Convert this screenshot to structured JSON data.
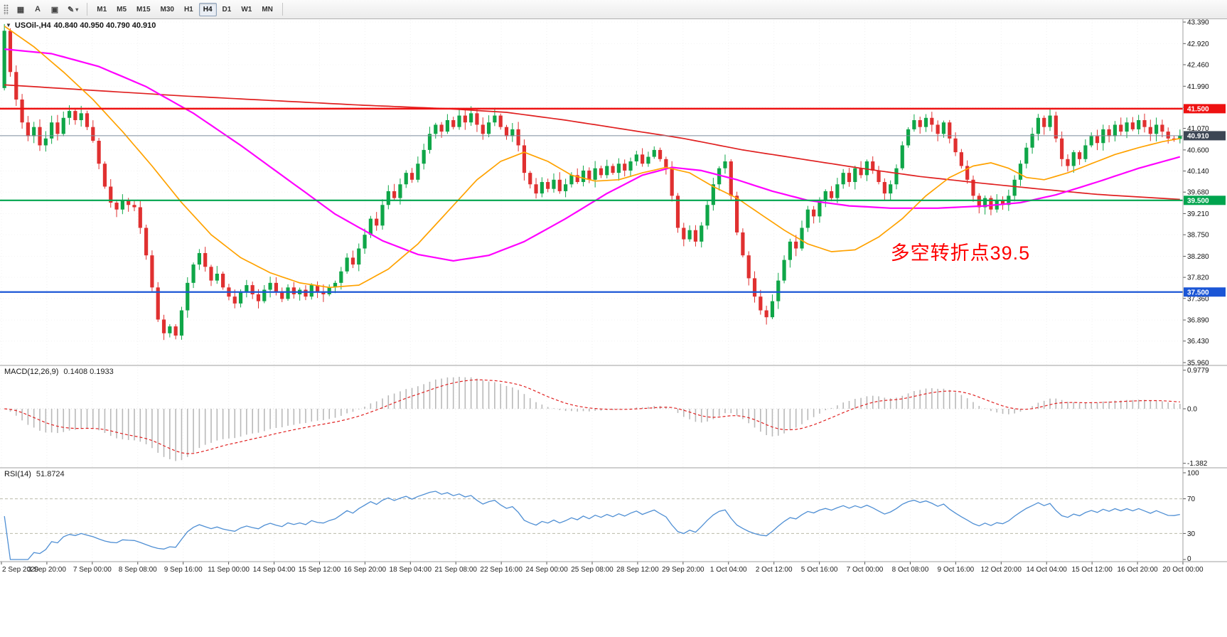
{
  "toolbar": {
    "tools": [
      {
        "name": "charts-grid",
        "glyph": "▦"
      },
      {
        "name": "annotate-text",
        "glyph": "A"
      },
      {
        "name": "select-box",
        "glyph": "▣"
      },
      {
        "name": "draw-pencil",
        "glyph": "✎",
        "caret": "▾"
      }
    ],
    "timeframes": [
      "M1",
      "M5",
      "M15",
      "M30",
      "H1",
      "H4",
      "D1",
      "W1",
      "MN"
    ],
    "active_timeframe": "H4"
  },
  "price_panel": {
    "collapse_arrow": "▼",
    "title": "USOil-,H4",
    "ohlc_text": "40.840 40.950 40.790 40.910"
  },
  "macd_panel": {
    "label": "MACD(12,26,9)",
    "values": "0.1408 0.1933"
  },
  "rsi_panel": {
    "label": "RSI(14)",
    "value": "51.8724"
  },
  "chart_data": {
    "type": "candlestick",
    "symbol": "USOil-",
    "timeframe": "H4",
    "price_axis_ticks": [
      43.39,
      42.92,
      42.46,
      41.99,
      41.53,
      41.07,
      40.6,
      40.14,
      39.68,
      39.21,
      38.75,
      38.28,
      37.82,
      37.36,
      36.89,
      36.43,
      35.96
    ],
    "time_labels": [
      "2 Sep 2020",
      "3 Sep 20:00",
      "7 Sep 00:00",
      "8 Sep 08:00",
      "9 Sep 16:00",
      "11 Sep 00:00",
      "14 Sep 04:00",
      "15 Sep 12:00",
      "16 Sep 20:00",
      "18 Sep 04:00",
      "21 Sep 08:00",
      "22 Sep 16:00",
      "24 Sep 00:00",
      "25 Sep 08:00",
      "28 Sep 12:00",
      "29 Sep 20:00",
      "1 Oct 04:00",
      "2 Oct 12:00",
      "5 Oct 16:00",
      "7 Oct 00:00",
      "8 Oct 08:00",
      "9 Oct 16:00",
      "12 Oct 20:00",
      "14 Oct 04:00",
      "15 Oct 12:00",
      "16 Oct 20:00",
      "20 Oct 00:00"
    ],
    "levels": [
      {
        "label": "41.500",
        "value": 41.5,
        "color": "#ee1111",
        "width": 2.4
      },
      {
        "label": "39.500",
        "value": 39.5,
        "color": "#00a44e",
        "width": 2.2
      },
      {
        "label": "37.500",
        "value": 37.5,
        "color": "#1b56d6",
        "width": 2.2
      }
    ],
    "bid": {
      "label": "40.910",
      "value": 40.91,
      "line_color": "#7d8b9c",
      "badge_color": "#3c4654"
    },
    "first_open": 41.95,
    "closes": [
      43.2,
      42.3,
      41.7,
      41.2,
      40.9,
      41.1,
      40.7,
      40.85,
      41.2,
      40.95,
      41.3,
      41.45,
      41.25,
      41.4,
      41.1,
      40.8,
      40.3,
      39.8,
      39.45,
      39.3,
      39.5,
      39.4,
      39.35,
      38.9,
      38.3,
      37.6,
      36.9,
      36.6,
      36.75,
      36.55,
      37.1,
      37.7,
      38.1,
      38.35,
      38.05,
      37.75,
      37.9,
      37.6,
      37.4,
      37.25,
      37.5,
      37.65,
      37.45,
      37.3,
      37.55,
      37.7,
      37.5,
      37.35,
      37.6,
      37.45,
      37.55,
      37.4,
      37.65,
      37.5,
      37.45,
      37.6,
      37.7,
      37.95,
      38.25,
      38.1,
      38.45,
      38.75,
      39.1,
      38.95,
      39.4,
      39.7,
      39.55,
      39.85,
      40.1,
      39.95,
      40.3,
      40.6,
      40.95,
      41.15,
      41.0,
      41.25,
      41.1,
      41.35,
      41.2,
      41.4,
      41.15,
      40.95,
      41.2,
      41.35,
      41.1,
      40.9,
      41.05,
      40.7,
      40.1,
      39.85,
      39.65,
      39.9,
      39.75,
      39.95,
      39.7,
      39.85,
      40.05,
      39.9,
      40.15,
      39.95,
      40.2,
      40.05,
      40.25,
      40.1,
      40.3,
      40.15,
      40.35,
      40.5,
      40.3,
      40.45,
      40.6,
      40.4,
      40.2,
      39.6,
      38.9,
      38.65,
      38.85,
      38.6,
      38.95,
      39.4,
      39.85,
      40.2,
      40.35,
      39.6,
      38.8,
      38.3,
      37.8,
      37.4,
      37.1,
      36.95,
      37.3,
      37.75,
      38.2,
      38.6,
      38.45,
      38.9,
      39.3,
      39.15,
      39.5,
      39.7,
      39.55,
      39.85,
      40.1,
      39.9,
      40.2,
      40.05,
      40.35,
      40.15,
      39.9,
      39.65,
      39.85,
      40.2,
      40.7,
      41.05,
      41.25,
      41.1,
      41.3,
      41.15,
      40.95,
      41.2,
      40.85,
      40.55,
      40.25,
      39.95,
      39.6,
      39.35,
      39.55,
      39.3,
      39.5,
      39.4,
      39.6,
      39.95,
      40.3,
      40.65,
      40.95,
      41.3,
      41.1,
      41.35,
      40.85,
      40.4,
      40.25,
      40.55,
      40.4,
      40.7,
      40.9,
      40.75,
      41.05,
      40.9,
      41.15,
      41.0,
      41.2,
      41.05,
      41.25,
      41.1,
      40.95,
      41.15,
      41.0,
      40.85,
      40.84,
      40.91
    ],
    "moving_averages": [
      {
        "name": "ma-slow",
        "color": "#e02020",
        "width": 1.7,
        "points": [
          [
            0,
            42.02
          ],
          [
            15,
            41.9
          ],
          [
            30,
            41.78
          ],
          [
            45,
            41.68
          ],
          [
            60,
            41.58
          ],
          [
            75,
            41.5
          ],
          [
            85,
            41.42
          ],
          [
            95,
            41.25
          ],
          [
            105,
            41.05
          ],
          [
            115,
            40.85
          ],
          [
            125,
            40.6
          ],
          [
            135,
            40.4
          ],
          [
            145,
            40.2
          ],
          [
            155,
            40.02
          ],
          [
            165,
            39.88
          ],
          [
            175,
            39.75
          ],
          [
            185,
            39.63
          ],
          [
            199,
            39.52
          ]
        ]
      },
      {
        "name": "ma-medium",
        "color": "#ff00ff",
        "width": 2.2,
        "points": [
          [
            0,
            42.8
          ],
          [
            8,
            42.7
          ],
          [
            16,
            42.42
          ],
          [
            24,
            41.98
          ],
          [
            32,
            41.4
          ],
          [
            40,
            40.7
          ],
          [
            48,
            39.95
          ],
          [
            56,
            39.2
          ],
          [
            64,
            38.62
          ],
          [
            70,
            38.32
          ],
          [
            76,
            38.18
          ],
          [
            82,
            38.3
          ],
          [
            88,
            38.6
          ],
          [
            95,
            39.1
          ],
          [
            102,
            39.65
          ],
          [
            108,
            40.05
          ],
          [
            113,
            40.22
          ],
          [
            118,
            40.15
          ],
          [
            124,
            39.95
          ],
          [
            130,
            39.7
          ],
          [
            136,
            39.5
          ],
          [
            143,
            39.38
          ],
          [
            150,
            39.33
          ],
          [
            158,
            39.33
          ],
          [
            166,
            39.38
          ],
          [
            172,
            39.45
          ],
          [
            178,
            39.62
          ],
          [
            185,
            39.9
          ],
          [
            192,
            40.2
          ],
          [
            199,
            40.45
          ]
        ]
      },
      {
        "name": "ma-fast",
        "color": "#ffa200",
        "width": 1.7,
        "points": [
          [
            0,
            43.3
          ],
          [
            5,
            42.85
          ],
          [
            10,
            42.3
          ],
          [
            15,
            41.7
          ],
          [
            20,
            41.0
          ],
          [
            25,
            40.25
          ],
          [
            30,
            39.45
          ],
          [
            35,
            38.75
          ],
          [
            40,
            38.25
          ],
          [
            45,
            37.92
          ],
          [
            50,
            37.7
          ],
          [
            55,
            37.6
          ],
          [
            60,
            37.65
          ],
          [
            65,
            38.0
          ],
          [
            70,
            38.55
          ],
          [
            75,
            39.25
          ],
          [
            80,
            39.95
          ],
          [
            84,
            40.35
          ],
          [
            88,
            40.55
          ],
          [
            92,
            40.35
          ],
          [
            96,
            40.05
          ],
          [
            100,
            39.92
          ],
          [
            104,
            39.95
          ],
          [
            108,
            40.1
          ],
          [
            112,
            40.22
          ],
          [
            116,
            40.1
          ],
          [
            120,
            39.8
          ],
          [
            124,
            39.55
          ],
          [
            128,
            39.2
          ],
          [
            132,
            38.85
          ],
          [
            136,
            38.55
          ],
          [
            140,
            38.38
          ],
          [
            144,
            38.42
          ],
          [
            148,
            38.7
          ],
          [
            152,
            39.1
          ],
          [
            156,
            39.6
          ],
          [
            160,
            40.0
          ],
          [
            164,
            40.25
          ],
          [
            167,
            40.32
          ],
          [
            170,
            40.2
          ],
          [
            173,
            40.0
          ],
          [
            176,
            39.95
          ],
          [
            180,
            40.1
          ],
          [
            184,
            40.3
          ],
          [
            188,
            40.5
          ],
          [
            192,
            40.65
          ],
          [
            196,
            40.78
          ],
          [
            199,
            40.85
          ]
        ]
      }
    ],
    "macd": {
      "fast": 12,
      "slow": 26,
      "signal": 9,
      "current_macd": 0.1408,
      "current_signal": 0.1933,
      "axis_ticks": [
        {
          "label": "0.9779",
          "value": 0.9779
        },
        {
          "label": "0.0",
          "value": 0
        },
        {
          "label": "-1.382",
          "value": -1.382
        }
      ]
    },
    "rsi": {
      "period": 14,
      "current": 51.8724,
      "levels": [
        70,
        30
      ],
      "axis_ticks": [
        {
          "label": "100",
          "value": 100
        },
        {
          "label": "70",
          "value": 70
        },
        {
          "label": "30",
          "value": 30
        },
        {
          "label": "0",
          "value": 0
        }
      ]
    },
    "annotation": {
      "text": "多空转折点39.5",
      "color": "#ff0000",
      "bar": 150,
      "price": 38.42
    },
    "colors": {
      "up": "#0fa648",
      "down": "#e03030",
      "macd_hist": "#b9b9b9",
      "macd_signal": "#e02020",
      "rsi_line": "#4f8fd4"
    }
  }
}
